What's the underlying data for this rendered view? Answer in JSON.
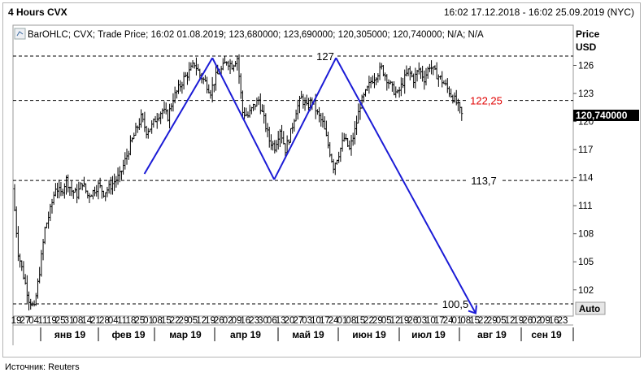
{
  "header": {
    "title": "4 Hours CVX",
    "range": "16:02 17.12.2018 - 16:02 25.09.2019 (NYC)"
  },
  "legend": {
    "text": "BarOHLC; CVX; Trade Price; 16:02 01.08.2019; 123,680000; 123,690000; 120,305000; 120,740000; N/A; N/A"
  },
  "axis": {
    "price_label": "Price",
    "currency_label": "USD",
    "auto_button": "Auto",
    "last_price": "120,740000"
  },
  "footer": {
    "source": "Источник: Reuters"
  },
  "colors": {
    "bars": "#000000",
    "pattern": "#1b1bd6",
    "level": "#000000",
    "highlight": "#e00000"
  },
  "chart_data": {
    "type": "bar",
    "subtype": "OHLC",
    "title": "4 Hours CVX",
    "ylabel": "Price USD",
    "ylim": [
      99.2,
      130.3
    ],
    "y_ticks": [
      102,
      105,
      108,
      111,
      114,
      117,
      120,
      123,
      126
    ],
    "x_day_labels": [
      "19",
      "27",
      "04",
      "11",
      "19",
      "25",
      "31",
      "08",
      "14",
      "21",
      "28",
      "04",
      "11",
      "18",
      "25",
      "01",
      "08",
      "15",
      "22",
      "29",
      "05",
      "12",
      "19",
      "26",
      "02",
      "09",
      "16",
      "23",
      "30",
      "06",
      "13",
      "20",
      "27",
      "03",
      "10",
      "17",
      "24",
      "01",
      "08",
      "15",
      "22",
      "29",
      "05",
      "12",
      "19",
      "26",
      "03",
      "10",
      "17",
      "24",
      "01",
      "08",
      "15",
      "22",
      "29",
      "05",
      "12",
      "19",
      "26",
      "02",
      "09",
      "16",
      "23"
    ],
    "x_month_labels": [
      "янв 19",
      "фев 19",
      "мар 19",
      "апр 19",
      "май 19",
      "июн 19",
      "июл 19",
      "авг 19",
      "сен 19"
    ],
    "price_series": [
      [
        0,
        112.8
      ],
      [
        1,
        106.0
      ],
      [
        2,
        103.5
      ],
      [
        3,
        101.0
      ],
      [
        4,
        100.0
      ],
      [
        5,
        104.0
      ],
      [
        6,
        108.5
      ],
      [
        7,
        110.5
      ],
      [
        8,
        113.0
      ],
      [
        9,
        112.3
      ],
      [
        10,
        113.8
      ],
      [
        11,
        112.6
      ],
      [
        12,
        112.2
      ],
      [
        13,
        113.5
      ],
      [
        14,
        112.1
      ],
      [
        15,
        112.5
      ],
      [
        16,
        113.2
      ],
      [
        17,
        112.4
      ],
      [
        18,
        112.9
      ],
      [
        19,
        113.6
      ],
      [
        20,
        114.2
      ],
      [
        21,
        115.8
      ],
      [
        22,
        117.5
      ],
      [
        23,
        119.0
      ],
      [
        24,
        120.4
      ],
      [
        25,
        119.0
      ],
      [
        26,
        119.5
      ],
      [
        27,
        120.6
      ],
      [
        28,
        121.2
      ],
      [
        29,
        120.5
      ],
      [
        30,
        122.5
      ],
      [
        31,
        123.5
      ],
      [
        32,
        124.6
      ],
      [
        33,
        125.3
      ],
      [
        34,
        126.2
      ],
      [
        35,
        125.0
      ],
      [
        36,
        124.2
      ],
      [
        37,
        123.2
      ],
      [
        38,
        124.8
      ],
      [
        39,
        125.5
      ],
      [
        40,
        126.5
      ],
      [
        41,
        126.0
      ],
      [
        42,
        126.8
      ],
      [
        43,
        121.0
      ],
      [
        44,
        120.6
      ],
      [
        45,
        121.6
      ],
      [
        46,
        122.3
      ],
      [
        47,
        120.2
      ],
      [
        48,
        118.0
      ],
      [
        49,
        117.3
      ],
      [
        50,
        119.2
      ],
      [
        51,
        117.0
      ],
      [
        52,
        118.8
      ],
      [
        53,
        121.2
      ],
      [
        54,
        122.5
      ],
      [
        55,
        121.5
      ],
      [
        56,
        122.3
      ],
      [
        57,
        120.8
      ],
      [
        58,
        119.8
      ],
      [
        59,
        117.5
      ],
      [
        60,
        115.2
      ],
      [
        61,
        116.6
      ],
      [
        62,
        118.2
      ],
      [
        63,
        117.0
      ],
      [
        64,
        119.0
      ],
      [
        65,
        121.8
      ],
      [
        66,
        123.0
      ],
      [
        67,
        124.3
      ],
      [
        68,
        125.0
      ],
      [
        69,
        125.7
      ],
      [
        70,
        124.6
      ],
      [
        71,
        123.5
      ],
      [
        72,
        122.9
      ],
      [
        73,
        124.2
      ],
      [
        74,
        125.4
      ],
      [
        75,
        124.5
      ],
      [
        76,
        125.6
      ],
      [
        77,
        124.6
      ],
      [
        78,
        126.0
      ],
      [
        79,
        125.2
      ],
      [
        80,
        124.6
      ],
      [
        81,
        123.8
      ],
      [
        82,
        122.9
      ],
      [
        83,
        122.0
      ],
      [
        84,
        120.7
      ]
    ],
    "pattern_lines": [
      [
        [
          10.5,
          114.4
        ],
        [
          16,
          126.8
        ]
      ],
      [
        [
          16,
          126.8
        ],
        [
          21,
          113.8
        ]
      ],
      [
        [
          21,
          113.8
        ],
        [
          26,
          126.8
        ]
      ],
      [
        [
          26,
          126.8
        ],
        [
          37.3,
          99.5
        ]
      ]
    ],
    "levels": [
      {
        "value": 127,
        "label": "127"
      },
      {
        "value": 122.25,
        "label": "122,25"
      },
      {
        "value": 113.7,
        "label": "113,7"
      },
      {
        "value": 100.5,
        "label": "100,5"
      }
    ]
  }
}
